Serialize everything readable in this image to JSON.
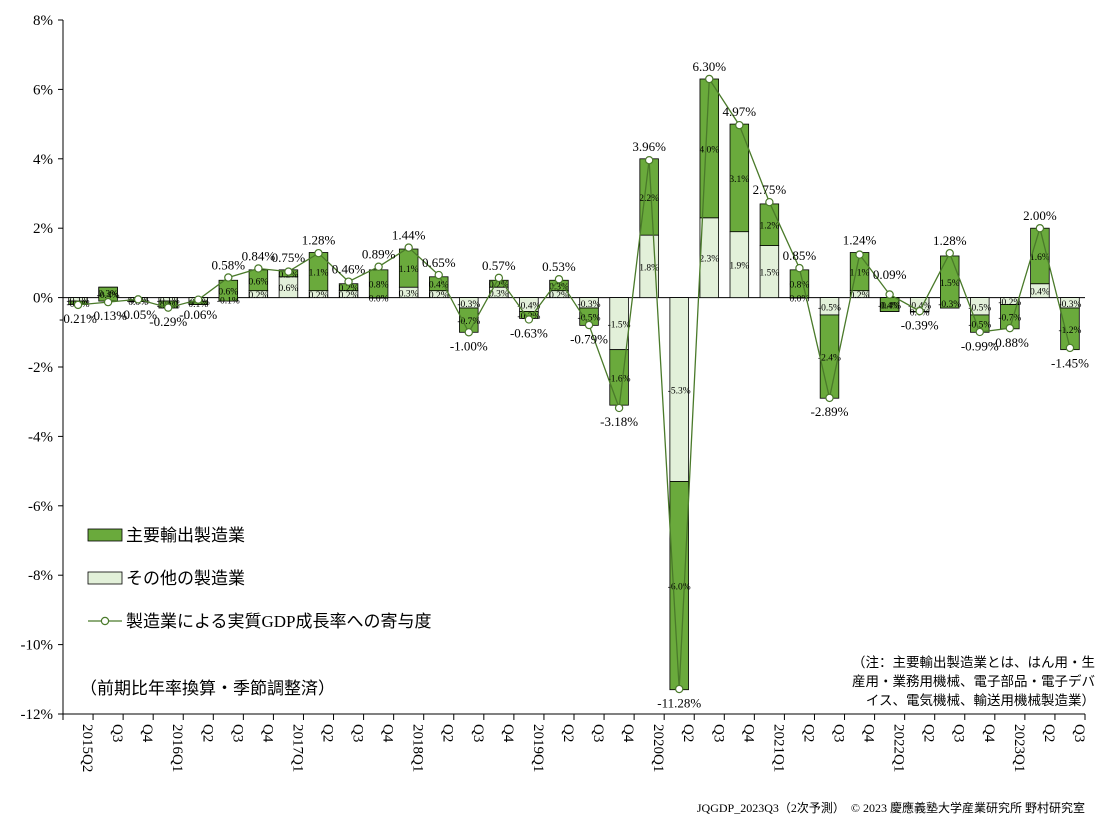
{
  "chart_data": {
    "type": "bar",
    "stacked": true,
    "categories": [
      "2015Q2",
      "Q3",
      "Q4",
      "2016Q1",
      "Q2",
      "Q3",
      "Q4",
      "2017Q1",
      "Q2",
      "Q3",
      "Q4",
      "2018Q1",
      "Q2",
      "Q3",
      "Q4",
      "2019Q1",
      "Q2",
      "Q3",
      "Q4",
      "2020Q1",
      "Q2",
      "Q3",
      "Q4",
      "2021Q1",
      "Q2",
      "Q3",
      "Q4",
      "2022Q1",
      "Q2",
      "Q3",
      "Q4",
      "2023Q1",
      "Q2",
      "Q3"
    ],
    "ylim": [
      -12,
      8
    ],
    "yticks": [
      "-12%",
      "-10%",
      "-8%",
      "-6%",
      "-4%",
      "-2%",
      "0%",
      "2%",
      "4%",
      "6%",
      "8%"
    ],
    "series": [
      {
        "name": "主要輸出製造業",
        "kind": "bar",
        "color": "#6aaa3c",
        "values": [
          -0.1,
          -0.4,
          0.0,
          -0.2,
          0.1,
          0.6,
          0.6,
          0.2,
          1.1,
          0.2,
          0.8,
          1.1,
          0.4,
          -0.7,
          0.2,
          -0.2,
          0.3,
          -0.5,
          -1.6,
          2.2,
          -6.0,
          4.0,
          3.1,
          1.2,
          0.8,
          -2.4,
          1.1,
          0.4,
          0.0,
          1.5,
          -0.5,
          -0.7,
          1.6,
          -1.2
        ],
        "labels": [
          "-0.1%",
          "-0.4%",
          "0.0%",
          "-0.2%",
          "0.1%",
          "0.6%",
          "0.6%",
          "0.2%",
          "1.1%",
          "0.2%",
          "0.8%",
          "1.1%",
          "0.4%",
          "-0.7%",
          "0.2%",
          "-0.2%",
          "0.3%",
          "-0.5%",
          "-1.6%",
          "2.2%",
          "-6.0%",
          "4.0%",
          "3.1%",
          "1.2%",
          "0.8%",
          "-2.4%",
          "1.1%",
          "0.4%",
          "0.0%",
          "1.5%",
          "-0.5%",
          "-0.7%",
          "1.6%",
          "-1.2%"
        ]
      },
      {
        "name": "その他の製造業",
        "kind": "bar",
        "color": "#e2f0d9",
        "values": [
          -0.1,
          0.3,
          -0.1,
          -0.1,
          -0.2,
          -0.1,
          0.2,
          0.6,
          0.2,
          0.2,
          0.0,
          0.3,
          0.2,
          -0.3,
          0.3,
          -0.4,
          0.2,
          -0.3,
          -1.5,
          1.8,
          -5.3,
          2.3,
          1.9,
          1.5,
          0.0,
          -0.5,
          0.2,
          -0.4,
          -0.4,
          -0.3,
          -0.5,
          -0.2,
          0.4,
          -0.3
        ],
        "labels": [
          "-0.1%",
          "0.3%",
          "-0.1%",
          "-0.1%",
          "-0.2%",
          "-0.1%",
          "0.2%",
          "0.6%",
          "0.2%",
          "0.2%",
          "0.0%",
          "0.3%",
          "0.2%",
          "-0.3%",
          "0.3%",
          "-0.4%",
          "0.2%",
          "-0.3%",
          "-1.5%",
          "1.8%",
          "-5.3%",
          "2.3%",
          "1.9%",
          "1.5%",
          "0.0%",
          "-0.5%",
          "0.2%",
          "-0.4%",
          "-0.4%",
          "-0.3%",
          "-0.5%",
          "-0.2%",
          "0.4%",
          "-0.3%"
        ]
      },
      {
        "name": "製造業による実質GDP成長率への寄与度",
        "kind": "line",
        "color": "#4a7a2a",
        "values": [
          -0.21,
          -0.13,
          -0.05,
          -0.29,
          -0.06,
          0.58,
          0.84,
          0.75,
          1.28,
          0.46,
          0.89,
          1.44,
          0.65,
          -1.0,
          0.57,
          -0.63,
          0.53,
          -0.79,
          -3.18,
          3.96,
          -11.28,
          6.3,
          4.97,
          2.75,
          0.85,
          -2.89,
          1.24,
          0.09,
          -0.39,
          1.28,
          -0.99,
          -0.88,
          2.0,
          -1.45
        ],
        "labels": [
          "-0.21%",
          "-0.13%",
          "-0.05%",
          "-0.29%",
          "-0.06%",
          "0.58%",
          "0.84%",
          "0.75%",
          "1.28%",
          "0.46%",
          "0.89%",
          "1.44%",
          "0.65%",
          "-1.00%",
          "0.57%",
          "-0.63%",
          "0.53%",
          "-0.79%",
          "-3.18%",
          "3.96%",
          "-11.28%",
          "6.30%",
          "4.97%",
          "2.75%",
          "0.85%",
          "-2.89%",
          "1.24%",
          "0.09%",
          "-0.39%",
          "1.28%",
          "-0.99%",
          "-0.88%",
          "2.00%",
          "-1.45%"
        ]
      }
    ],
    "legend_position": "bottom-left",
    "annotations": {
      "basis": "（前期比年率換算・季節調整済）",
      "note_lines": [
        "（注：主要輸出製造業とは、はん用・生",
        "産用・業務用機械、電子部品・電子デバ",
        "イス、電気機械、輸送用機械製造業）"
      ],
      "footer": "JQGDP_2023Q3（2次予測）　© 2023 慶應義塾大学産業研究所 野村研究室"
    }
  }
}
